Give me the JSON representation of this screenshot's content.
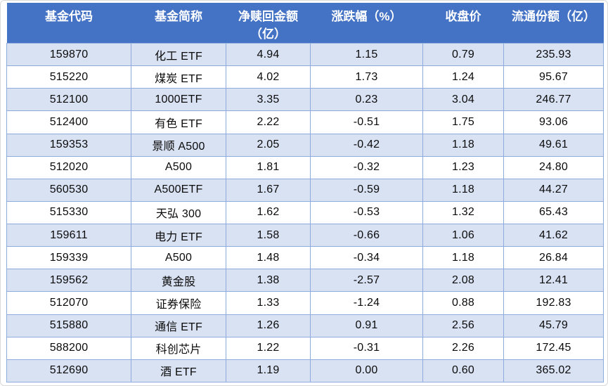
{
  "colors": {
    "header_bg": "#4472C4",
    "header_text": "#FFFFFF",
    "row_alt_bg": "#D9E2F3",
    "row_bg": "#FFFFFF",
    "cell_border": "#8FAADC",
    "body_text": "#0B0B0B"
  },
  "table": {
    "columns": [
      "基金代码",
      "基金简称",
      "净赎回金额\n（亿）",
      "涨跌幅（%）",
      "收盘价",
      "流通份额（亿）"
    ],
    "column_names": [
      "fund-code",
      "fund-name",
      "net-redemption-amount",
      "change-percent",
      "close-price",
      "float-shares"
    ],
    "rows": [
      [
        "159870",
        "化工 ETF",
        "4.94",
        "1.15",
        "0.79",
        "235.93"
      ],
      [
        "515220",
        "煤炭 ETF",
        "4.02",
        "1.73",
        "1.24",
        "95.67"
      ],
      [
        "512100",
        "1000ETF",
        "3.35",
        "0.23",
        "3.04",
        "246.77"
      ],
      [
        "512400",
        "有色 ETF",
        "2.22",
        "-0.51",
        "1.75",
        "93.06"
      ],
      [
        "159353",
        "景顺 A500",
        "2.05",
        "-0.42",
        "1.18",
        "49.61"
      ],
      [
        "512020",
        "A500",
        "1.81",
        "-0.32",
        "1.23",
        "24.80"
      ],
      [
        "560530",
        "A500ETF",
        "1.67",
        "-0.59",
        "1.18",
        "44.27"
      ],
      [
        "515330",
        "天弘 300",
        "1.62",
        "-0.53",
        "1.32",
        "65.43"
      ],
      [
        "159611",
        "电力 ETF",
        "1.58",
        "-0.66",
        "1.06",
        "41.62"
      ],
      [
        "159339",
        "A500",
        "1.48",
        "-0.34",
        "1.18",
        "26.84"
      ],
      [
        "159562",
        "黄金股",
        "1.38",
        "-2.57",
        "2.08",
        "12.41"
      ],
      [
        "512070",
        "证券保险",
        "1.33",
        "-1.24",
        "0.88",
        "192.83"
      ],
      [
        "515880",
        "通信 ETF",
        "1.26",
        "0.91",
        "2.56",
        "45.79"
      ],
      [
        "588200",
        "科创芯片",
        "1.22",
        "-0.31",
        "2.26",
        "172.45"
      ],
      [
        "512690",
        "酒 ETF",
        "1.19",
        "0.00",
        "0.60",
        "365.02"
      ]
    ]
  },
  "chart_data": {
    "type": "table",
    "title": "",
    "columns": [
      "基金代码",
      "基金简称",
      "净赎回金额（亿）",
      "涨跌幅（%）",
      "收盘价",
      "流通份额（亿）"
    ],
    "rows": [
      [
        "159870",
        "化工 ETF",
        4.94,
        1.15,
        0.79,
        235.93
      ],
      [
        "515220",
        "煤炭 ETF",
        4.02,
        1.73,
        1.24,
        95.67
      ],
      [
        "512100",
        "1000ETF",
        3.35,
        0.23,
        3.04,
        246.77
      ],
      [
        "512400",
        "有色 ETF",
        2.22,
        -0.51,
        1.75,
        93.06
      ],
      [
        "159353",
        "景顺 A500",
        2.05,
        -0.42,
        1.18,
        49.61
      ],
      [
        "512020",
        "A500",
        1.81,
        -0.32,
        1.23,
        24.8
      ],
      [
        "560530",
        "A500ETF",
        1.67,
        -0.59,
        1.18,
        44.27
      ],
      [
        "515330",
        "天弘 300",
        1.62,
        -0.53,
        1.32,
        65.43
      ],
      [
        "159611",
        "电力 ETF",
        1.58,
        -0.66,
        1.06,
        41.62
      ],
      [
        "159339",
        "A500",
        1.48,
        -0.34,
        1.18,
        26.84
      ],
      [
        "159562",
        "黄金股",
        1.38,
        -2.57,
        2.08,
        12.41
      ],
      [
        "512070",
        "证券保险",
        1.33,
        -1.24,
        0.88,
        192.83
      ],
      [
        "515880",
        "通信 ETF",
        1.26,
        0.91,
        2.56,
        45.79
      ],
      [
        "588200",
        "科创芯片",
        1.22,
        -0.31,
        2.26,
        172.45
      ],
      [
        "512690",
        "酒 ETF",
        1.19,
        0.0,
        0.6,
        365.02
      ]
    ]
  }
}
